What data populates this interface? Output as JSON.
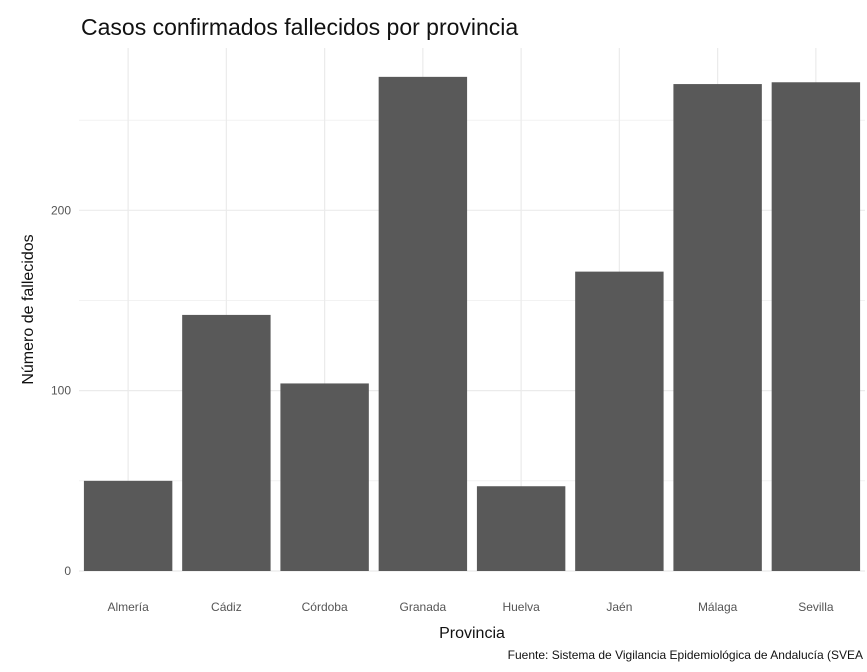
{
  "chart_data": {
    "type": "bar",
    "title": "Casos confirmados fallecidos por provincia",
    "xlabel": "Provincia",
    "ylabel": "Número de fallecidos",
    "caption": "Fuente: Sistema de Vigilancia Epidemiológica de Andalucía (SVEA",
    "categories": [
      "Almería",
      "Cádiz",
      "Córdoba",
      "Granada",
      "Huelva",
      "Jaén",
      "Málaga",
      "Sevilla"
    ],
    "values": [
      50,
      142,
      104,
      274,
      47,
      166,
      270,
      271
    ],
    "yticks": [
      0,
      100,
      200
    ],
    "ylim": [
      0,
      290
    ],
    "grid": true,
    "bar_color": "#595959",
    "grid_color": "#ebebeb"
  }
}
